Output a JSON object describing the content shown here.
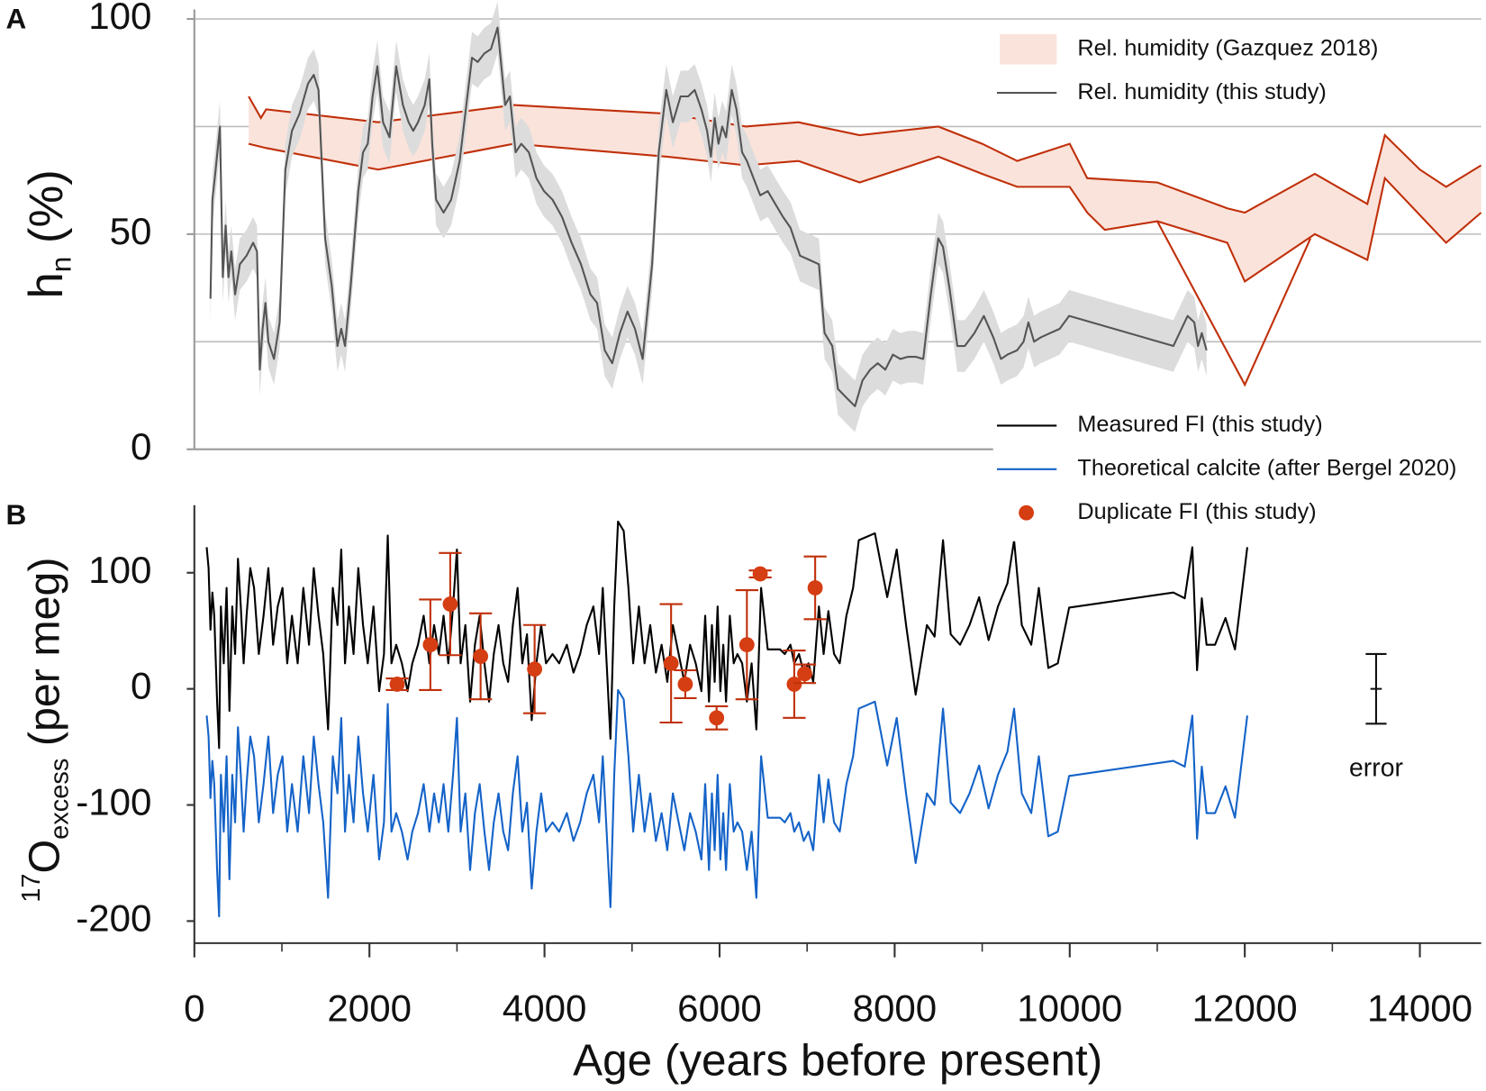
{
  "chart_data": [
    {
      "type": "line",
      "panel_label": "A",
      "ylabel": {
        "base": "h",
        "sub": "n",
        "rest": " (%)"
      },
      "xlim": [
        0,
        14700
      ],
      "ylim": [
        0,
        100
      ],
      "yticks": [
        0,
        50,
        100
      ],
      "ygrid": [
        25,
        50,
        75,
        100
      ],
      "grid": true,
      "legend": "upper right",
      "bands": [
        {
          "name": "Rel. humidity (Gazquez 2018)",
          "color": "#c0300a",
          "fill": "#fae3db",
          "x_upper": [
            620,
            760,
            820,
            2100,
            3650,
            4500,
            5400,
            6300,
            6900,
            7600,
            8500,
            9000,
            9400,
            10000,
            10200,
            11000,
            11800,
            12000,
            12800,
            13400,
            13600,
            14000,
            14300,
            14700
          ],
          "upper": [
            82,
            77,
            79,
            76,
            80,
            79,
            78,
            75,
            76,
            73,
            75,
            71,
            67,
            71,
            63,
            62,
            56,
            55,
            64,
            57,
            73,
            65,
            61,
            66
          ],
          "x_lower": [
            620,
            820,
            2100,
            3650,
            5400,
            6300,
            6900,
            7600,
            8500,
            9000,
            9400,
            10000,
            10200,
            10400,
            11000,
            11800,
            12000,
            12800,
            13400,
            13600,
            14300,
            14700
          ],
          "lower": [
            71,
            70,
            65,
            71,
            68,
            66,
            67,
            62,
            68,
            64,
            61,
            61,
            55,
            51,
            53,
            48,
            39,
            50,
            44,
            63,
            48,
            55
          ],
          "x_minimum": [
            11000,
            12000,
            12750
          ],
          "minimum": [
            53,
            15,
            49
          ]
        }
      ],
      "series": [
        {
          "name": "Rel. humidity (this study)",
          "color": "#555555",
          "band_color": "#dcdcdc",
          "uncertainty": 6,
          "x": [
            184,
            206,
            238,
            292,
            325,
            357,
            390,
            422,
            466,
            520,
            596,
            671,
            715,
            747,
            779,
            812,
            845,
            909,
            974,
            1039,
            1115,
            1202,
            1299,
            1364,
            1418,
            1494,
            1570,
            1635,
            1678,
            1721,
            1786,
            1873,
            1927,
            1981,
            2036,
            2090,
            2155,
            2230,
            2306,
            2382,
            2447,
            2501,
            2555,
            2631,
            2685,
            2717,
            2761,
            2847,
            2934,
            3031,
            3107,
            3172,
            3237,
            3313,
            3388,
            3464,
            3551,
            3605,
            3670,
            3735,
            3821,
            3908,
            3994,
            4092,
            4200,
            4309,
            4417,
            4525,
            4601,
            4688,
            4774,
            4861,
            4948,
            5034,
            5121,
            5229,
            5305,
            5391,
            5467,
            5554,
            5641,
            5716,
            5792,
            5857,
            5901,
            5944,
            5987,
            6031,
            6074,
            6139,
            6193,
            6258,
            6312,
            6388,
            6464,
            6550,
            6637,
            6724,
            6810,
            6918,
            7026,
            7135,
            7200,
            7287,
            7352,
            7449,
            7547,
            7633,
            7720,
            7807,
            7893,
            7980,
            8066,
            8153,
            8240,
            8326,
            8413,
            8499,
            8553,
            8629,
            8716,
            8802,
            8911,
            9019,
            9127,
            9214,
            9289,
            9398,
            9473,
            9528,
            9593,
            9668,
            9777,
            9885,
            9993,
            11184,
            11347,
            11423,
            11466,
            11509,
            11563
          ],
          "values": [
            35,
            58,
            64,
            75,
            40,
            52,
            40,
            46,
            36,
            43,
            45,
            48,
            46,
            18.5,
            28,
            34,
            25,
            21,
            29.5,
            65,
            74,
            78,
            85,
            87,
            83.5,
            49,
            38,
            24,
            28,
            24,
            38,
            60,
            69,
            71,
            82,
            89,
            76,
            72.5,
            89,
            80,
            76,
            74,
            76,
            80,
            86,
            71,
            58,
            55,
            58,
            67,
            80,
            91,
            90,
            92,
            93,
            98,
            80,
            82,
            69,
            71,
            69,
            63,
            60,
            58,
            54,
            48,
            43,
            36,
            34,
            23,
            20,
            27,
            32,
            28,
            21,
            43,
            69,
            83.5,
            76,
            82,
            82,
            83.5,
            79,
            74,
            68,
            77,
            71,
            75,
            72.5,
            83.5,
            79,
            69,
            67,
            63,
            59,
            60,
            57,
            54,
            51.5,
            45,
            44,
            43,
            27,
            24,
            14,
            12,
            10,
            16,
            18.5,
            20,
            18.5,
            22,
            21,
            21.5,
            21.5,
            21,
            36,
            49,
            47,
            37,
            24,
            24,
            27,
            31,
            26,
            21,
            22,
            23,
            25,
            29.5,
            25,
            26,
            27,
            28,
            31,
            24,
            31,
            29.5,
            24,
            27,
            23
          ]
        }
      ]
    },
    {
      "type": "line",
      "panel_label": "B",
      "ylabel": {
        "sup": "17",
        "base": "O",
        "sub": "excess",
        "rest": " (per meg)"
      },
      "xlabel": "Age (years before present)",
      "xlim": [
        0,
        14700
      ],
      "ylim": [
        -219,
        150
      ],
      "yticks": [
        -200,
        -100,
        0,
        100
      ],
      "xticks": [
        0,
        2000,
        4000,
        6000,
        8000,
        10000,
        12000,
        14000
      ],
      "xminor_step": 1000,
      "legend": "upper right",
      "x": [
        141,
        162,
        184,
        206,
        227,
        260,
        282,
        303,
        336,
        368,
        401,
        433,
        466,
        498,
        530,
        563,
        596,
        639,
        682,
        736,
        790,
        845,
        899,
        953,
        1007,
        1061,
        1115,
        1180,
        1245,
        1310,
        1364,
        1418,
        1472,
        1527,
        1581,
        1635,
        1678,
        1721,
        1765,
        1819,
        1873,
        1927,
        1981,
        2046,
        2111,
        2166,
        2209,
        2252,
        2306,
        2371,
        2436,
        2490,
        2555,
        2620,
        2685,
        2739,
        2793,
        2847,
        2901,
        2955,
        2999,
        3042,
        3096,
        3150,
        3205,
        3259,
        3313,
        3367,
        3421,
        3475,
        3529,
        3584,
        3638,
        3692,
        3746,
        3800,
        3854,
        3908,
        3962,
        4017,
        4092,
        4168,
        4255,
        4331,
        4407,
        4482,
        4558,
        4623,
        4666,
        4710,
        4753,
        4796,
        4840,
        4905,
        4959,
        5013,
        5078,
        5143,
        5208,
        5273,
        5338,
        5403,
        5467,
        5532,
        5597,
        5662,
        5727,
        5792,
        5836,
        5879,
        5912,
        5944,
        5977,
        6009,
        6042,
        6074,
        6117,
        6161,
        6204,
        6258,
        6312,
        6366,
        6420,
        6474,
        6550,
        6691,
        6745,
        6810,
        6853,
        6907,
        6961,
        7016,
        7070,
        7135,
        7189,
        7243,
        7308,
        7373,
        7449,
        7525,
        7590,
        7774,
        7915,
        8023,
        8131,
        8240,
        8369,
        8456,
        8553,
        8640,
        8748,
        8856,
        8965,
        9073,
        9181,
        9289,
        9365,
        9452,
        9560,
        9647,
        9755,
        9863,
        9993,
        11184,
        11314,
        11401,
        11455,
        11509,
        11563,
        11660,
        11780,
        11888,
        12028
      ],
      "series": [
        {
          "name": "Measured FI (this study)",
          "color": "#000000",
          "values": [
            122,
            104,
            51,
            83,
            63,
            -11,
            -51,
            71,
            22,
            87,
            -19,
            71,
            30,
            112,
            71,
            22,
            63,
            104,
            87,
            30,
            63,
            104,
            38,
            71,
            87,
            22,
            63,
            22,
            87,
            38,
            104,
            63,
            30,
            -35,
            87,
            55,
            120,
            22,
            71,
            30,
            104,
            55,
            22,
            71,
            -2,
            30,
            132,
            22,
            38,
            22,
            -2,
            22,
            38,
            63,
            22,
            55,
            30,
            63,
            22,
            71,
            120,
            22,
            55,
            -11,
            38,
            63,
            22,
            -11,
            30,
            55,
            22,
            6,
            55,
            87,
            22,
            47,
            -27,
            22,
            55,
            22,
            30,
            22,
            38,
            14,
            30,
            55,
            71,
            30,
            87,
            22,
            -43,
            71,
            144,
            136,
            87,
            22,
            71,
            22,
            55,
            14,
            38,
            6,
            55,
            30,
            6,
            38,
            22,
            -2,
            63,
            -11,
            55,
            6,
            71,
            -2,
            38,
            -11,
            63,
            22,
            30,
            22,
            -11,
            22,
            -35,
            87,
            34,
            34,
            30,
            38,
            22,
            30,
            14,
            22,
            6,
            71,
            30,
            67,
            30,
            22,
            63,
            87,
            128,
            134,
            79,
            120,
            55,
            -5,
            55,
            45,
            128,
            47,
            38,
            55,
            79,
            42,
            71,
            91,
            128,
            55,
            38,
            87,
            18,
            22,
            70,
            83,
            78,
            122,
            16,
            78,
            38,
            38,
            61,
            34,
            122
          ]
        },
        {
          "name": "Theoretical calcite (after Bergel 2020)",
          "color": "#1463c8",
          "values": [
            -23,
            -41,
            -94,
            -62,
            -82,
            -156,
            -196,
            -74,
            -123,
            -58,
            -164,
            -74,
            -115,
            -33,
            -74,
            -123,
            -82,
            -41,
            -58,
            -115,
            -82,
            -41,
            -107,
            -74,
            -58,
            -123,
            -82,
            -123,
            -58,
            -107,
            -41,
            -82,
            -115,
            -180,
            -58,
            -90,
            -25,
            -123,
            -74,
            -115,
            -41,
            -90,
            -123,
            -74,
            -147,
            -115,
            -13,
            -123,
            -107,
            -123,
            -147,
            -123,
            -107,
            -82,
            -123,
            -90,
            -115,
            -82,
            -123,
            -74,
            -25,
            -123,
            -90,
            -156,
            -107,
            -82,
            -123,
            -156,
            -115,
            -90,
            -123,
            -139,
            -90,
            -58,
            -123,
            -98,
            -172,
            -123,
            -90,
            -123,
            -115,
            -123,
            -107,
            -131,
            -115,
            -90,
            -74,
            -115,
            -58,
            -123,
            -188,
            -74,
            -1,
            -9,
            -58,
            -123,
            -74,
            -123,
            -90,
            -131,
            -107,
            -139,
            -90,
            -115,
            -139,
            -107,
            -123,
            -147,
            -82,
            -156,
            -90,
            -139,
            -74,
            -147,
            -107,
            -156,
            -82,
            -123,
            -115,
            -123,
            -156,
            -123,
            -180,
            -58,
            -111,
            -111,
            -115,
            -107,
            -123,
            -115,
            -131,
            -123,
            -139,
            -74,
            -115,
            -78,
            -115,
            -123,
            -82,
            -58,
            -17,
            -11,
            -66,
            -25,
            -90,
            -150,
            -90,
            -100,
            -17,
            -98,
            -107,
            -90,
            -66,
            -103,
            -74,
            -54,
            -17,
            -90,
            -107,
            -58,
            -127,
            -123,
            -75,
            -62,
            -67,
            -23,
            -129,
            -67,
            -107,
            -107,
            -84,
            -111,
            -23
          ]
        }
      ],
      "points": {
        "name": "Duplicate FI (this study)",
        "color": "#d53d12",
        "error_color": "#c0300a",
        "x": [
          2317,
          2696,
          2923,
          3270,
          3887,
          5446,
          5608,
          5966,
          6312,
          6464,
          6853,
          6972,
          7092
        ],
        "values": [
          4,
          38,
          73,
          28,
          17,
          22,
          4,
          -25,
          38,
          99,
          4,
          13,
          87
        ],
        "errors": [
          5,
          39,
          44,
          37,
          38,
          51,
          12,
          10,
          47,
          3,
          29,
          8,
          27
        ]
      },
      "error_marker": {
        "label": "error",
        "x": 13500,
        "value": 0,
        "error": 30
      }
    }
  ]
}
